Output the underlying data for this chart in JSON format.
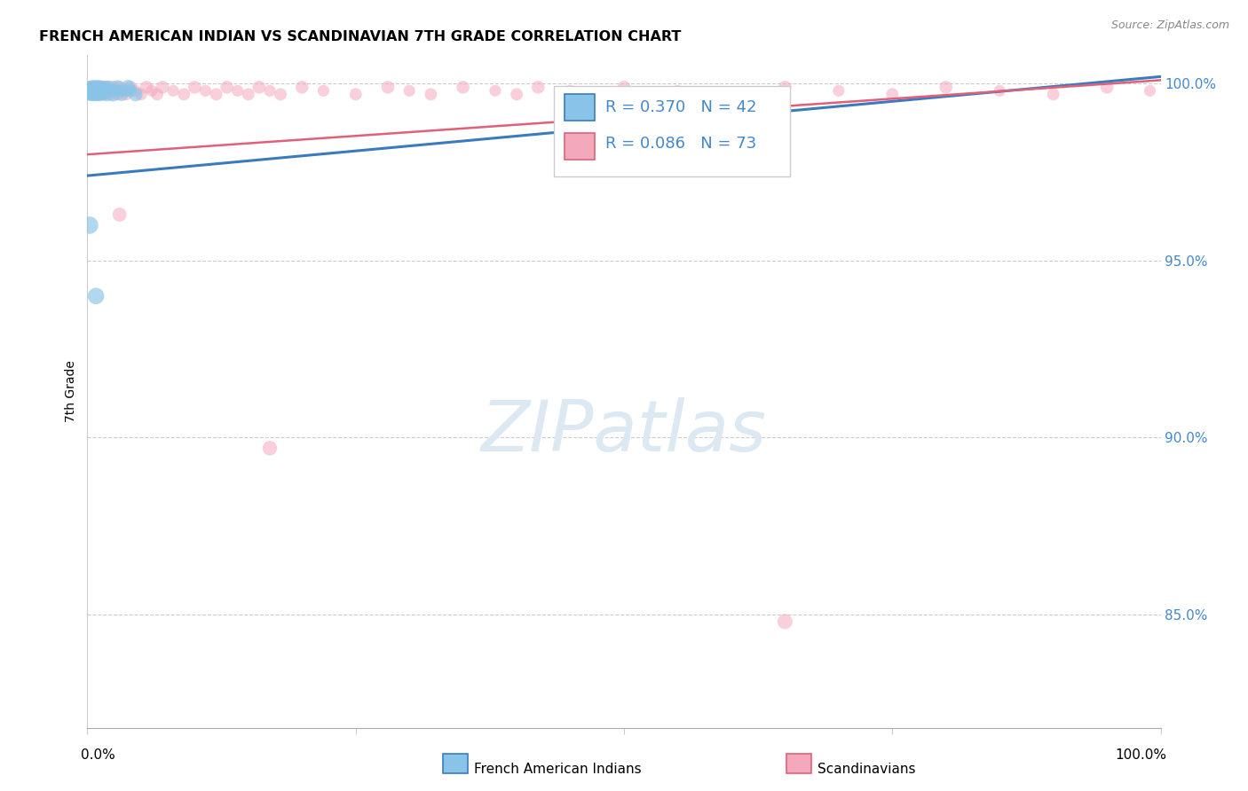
{
  "title": "FRENCH AMERICAN INDIAN VS SCANDINAVIAN 7TH GRADE CORRELATION CHART",
  "source": "Source: ZipAtlas.com",
  "ylabel": "7th Grade",
  "color_blue": "#89c4e8",
  "color_pink": "#f4a8bc",
  "line_color_blue": "#3a7bbf",
  "line_color_pink": "#e0607a",
  "grid_color": "#cccccc",
  "xlim": [
    0.0,
    1.0
  ],
  "ylim": [
    0.818,
    1.008
  ],
  "yticks": [
    0.85,
    0.9,
    0.95,
    1.0
  ],
  "ytick_labels": [
    "85.0%",
    "90.0%",
    "95.0%",
    "100.0%"
  ],
  "blue_x": [
    0.001,
    0.002,
    0.002,
    0.003,
    0.003,
    0.004,
    0.004,
    0.005,
    0.005,
    0.006,
    0.006,
    0.007,
    0.007,
    0.008,
    0.008,
    0.009,
    0.009,
    0.01,
    0.01,
    0.011,
    0.011,
    0.012,
    0.013,
    0.014,
    0.015,
    0.016,
    0.017,
    0.018,
    0.019,
    0.02,
    0.022,
    0.024,
    0.026,
    0.028,
    0.03,
    0.032,
    0.035,
    0.038,
    0.04,
    0.045,
    0.002,
    0.008
  ],
  "blue_y": [
    0.998,
    0.999,
    0.997,
    0.998,
    0.999,
    0.997,
    0.998,
    0.999,
    0.998,
    0.997,
    0.999,
    0.998,
    0.997,
    0.999,
    0.998,
    0.997,
    0.999,
    0.998,
    0.997,
    0.999,
    0.998,
    0.997,
    0.998,
    0.999,
    0.997,
    0.998,
    0.999,
    0.997,
    0.998,
    0.999,
    0.998,
    0.997,
    0.998,
    0.999,
    0.998,
    0.997,
    0.998,
    0.999,
    0.998,
    0.997,
    0.96,
    0.94
  ],
  "blue_sizes": [
    120,
    100,
    110,
    130,
    90,
    120,
    100,
    140,
    110,
    130,
    90,
    120,
    100,
    140,
    110,
    130,
    90,
    120,
    100,
    140,
    110,
    130,
    90,
    120,
    100,
    140,
    110,
    130,
    90,
    120,
    100,
    140,
    110,
    130,
    90,
    120,
    100,
    140,
    110,
    130,
    200,
    180
  ],
  "pink_x": [
    0.001,
    0.002,
    0.002,
    0.003,
    0.004,
    0.004,
    0.005,
    0.006,
    0.007,
    0.008,
    0.009,
    0.01,
    0.011,
    0.012,
    0.013,
    0.014,
    0.015,
    0.016,
    0.017,
    0.018,
    0.019,
    0.02,
    0.022,
    0.024,
    0.026,
    0.028,
    0.03,
    0.033,
    0.036,
    0.04,
    0.045,
    0.05,
    0.055,
    0.06,
    0.065,
    0.07,
    0.08,
    0.09,
    0.1,
    0.11,
    0.12,
    0.13,
    0.14,
    0.15,
    0.16,
    0.17,
    0.18,
    0.2,
    0.22,
    0.25,
    0.28,
    0.3,
    0.32,
    0.35,
    0.38,
    0.4,
    0.42,
    0.45,
    0.48,
    0.5,
    0.55,
    0.6,
    0.65,
    0.7,
    0.75,
    0.8,
    0.85,
    0.9,
    0.95,
    0.99,
    0.03,
    0.17,
    0.65
  ],
  "pink_y": [
    0.999,
    0.998,
    0.999,
    0.997,
    0.998,
    0.999,
    0.997,
    0.998,
    0.999,
    0.997,
    0.998,
    0.999,
    0.997,
    0.998,
    0.999,
    0.997,
    0.998,
    0.999,
    0.997,
    0.998,
    0.999,
    0.998,
    0.997,
    0.999,
    0.998,
    0.997,
    0.999,
    0.998,
    0.997,
    0.999,
    0.998,
    0.997,
    0.999,
    0.998,
    0.997,
    0.999,
    0.998,
    0.997,
    0.999,
    0.998,
    0.997,
    0.999,
    0.998,
    0.997,
    0.999,
    0.998,
    0.997,
    0.999,
    0.998,
    0.997,
    0.999,
    0.998,
    0.997,
    0.999,
    0.998,
    0.997,
    0.999,
    0.998,
    0.997,
    0.999,
    0.998,
    0.997,
    0.999,
    0.998,
    0.997,
    0.999,
    0.998,
    0.997,
    0.999,
    0.998,
    0.963,
    0.897,
    0.848
  ],
  "pink_sizes": [
    90,
    100,
    110,
    90,
    100,
    110,
    90,
    100,
    110,
    90,
    100,
    110,
    90,
    100,
    110,
    90,
    100,
    110,
    90,
    100,
    110,
    90,
    100,
    110,
    90,
    100,
    110,
    90,
    100,
    110,
    90,
    100,
    110,
    90,
    100,
    110,
    90,
    100,
    110,
    90,
    100,
    110,
    90,
    100,
    110,
    90,
    100,
    110,
    90,
    100,
    110,
    90,
    100,
    110,
    90,
    100,
    110,
    90,
    100,
    110,
    90,
    100,
    110,
    90,
    100,
    110,
    90,
    100,
    110,
    90,
    130,
    140,
    150
  ],
  "trendline_blue_x0": 0.0,
  "trendline_blue_y0": 0.974,
  "trendline_blue_x1": 1.0,
  "trendline_blue_y1": 1.002,
  "trendline_pink_x0": 0.0,
  "trendline_pink_y0": 0.98,
  "trendline_pink_x1": 1.0,
  "trendline_pink_y1": 1.001
}
